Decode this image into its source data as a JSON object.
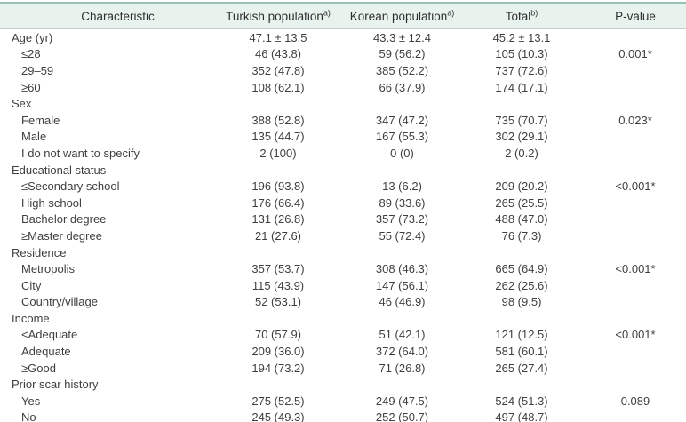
{
  "table": {
    "columns": [
      {
        "label": "Characteristic",
        "sup": ""
      },
      {
        "label": "Turkish population",
        "sup": "a)"
      },
      {
        "label": "Korean population",
        "sup": "a)"
      },
      {
        "label": "Total",
        "sup": "b)"
      },
      {
        "label": "P-value",
        "sup": ""
      }
    ],
    "rows": [
      {
        "label": "Age (yr)",
        "indent": 0,
        "turkish": "47.1 ± 13.5",
        "korean": "43.3 ± 12.4",
        "total": "45.2 ± 13.1",
        "p": ""
      },
      {
        "label": "≤28",
        "indent": 1,
        "turkish": "46 (43.8)",
        "korean": "59 (56.2)",
        "total": "105 (10.3)",
        "p": "0.001*"
      },
      {
        "label": "29–59",
        "indent": 1,
        "turkish": "352 (47.8)",
        "korean": "385 (52.2)",
        "total": "737 (72.6)",
        "p": ""
      },
      {
        "label": "≥60",
        "indent": 1,
        "turkish": "108 (62.1)",
        "korean": "66 (37.9)",
        "total": "174 (17.1)",
        "p": ""
      },
      {
        "label": "Sex",
        "indent": 0,
        "turkish": "",
        "korean": "",
        "total": "",
        "p": ""
      },
      {
        "label": "Female",
        "indent": 1,
        "turkish": "388 (52.8)",
        "korean": "347 (47.2)",
        "total": "735 (70.7)",
        "p": "0.023*"
      },
      {
        "label": "Male",
        "indent": 1,
        "turkish": "135 (44.7)",
        "korean": "167 (55.3)",
        "total": "302 (29.1)",
        "p": ""
      },
      {
        "label": "I do not want to specify",
        "indent": 1,
        "turkish": "2 (100)",
        "korean": "0 (0)",
        "total": "2 (0.2)",
        "p": ""
      },
      {
        "label": "Educational status",
        "indent": 0,
        "turkish": "",
        "korean": "",
        "total": "",
        "p": ""
      },
      {
        "label": "≤Secondary school",
        "indent": 1,
        "turkish": "196 (93.8)",
        "korean": "13 (6.2)",
        "total": "209 (20.2)",
        "p": "<0.001*"
      },
      {
        "label": "High school",
        "indent": 1,
        "turkish": "176 (66.4)",
        "korean": "89 (33.6)",
        "total": "265 (25.5)",
        "p": ""
      },
      {
        "label": "Bachelor degree",
        "indent": 1,
        "turkish": "131 (26.8)",
        "korean": "357 (73.2)",
        "total": "488 (47.0)",
        "p": ""
      },
      {
        "label": "≥Master degree",
        "indent": 1,
        "turkish": "21 (27.6)",
        "korean": "55 (72.4)",
        "total": "76 (7.3)",
        "p": ""
      },
      {
        "label": "Residence",
        "indent": 0,
        "turkish": "",
        "korean": "",
        "total": "",
        "p": ""
      },
      {
        "label": "Metropolis",
        "indent": 1,
        "turkish": "357 (53.7)",
        "korean": "308 (46.3)",
        "total": "665 (64.9)",
        "p": "<0.001*"
      },
      {
        "label": "City",
        "indent": 1,
        "turkish": "115 (43.9)",
        "korean": "147 (56.1)",
        "total": "262 (25.6)",
        "p": ""
      },
      {
        "label": "Country/village",
        "indent": 1,
        "turkish": "52 (53.1)",
        "korean": "46 (46.9)",
        "total": "98 (9.5)",
        "p": ""
      },
      {
        "label": "Income",
        "indent": 0,
        "turkish": "",
        "korean": "",
        "total": "",
        "p": ""
      },
      {
        "label": "<Adequate",
        "indent": 1,
        "turkish": "70 (57.9)",
        "korean": "51 (42.1)",
        "total": "121 (12.5)",
        "p": "<0.001*"
      },
      {
        "label": "Adequate",
        "indent": 1,
        "turkish": "209 (36.0)",
        "korean": "372 (64.0)",
        "total": "581 (60.1)",
        "p": ""
      },
      {
        "label": "≥Good",
        "indent": 1,
        "turkish": "194 (73.2)",
        "korean": "71 (26.8)",
        "total": "265 (27.4)",
        "p": ""
      },
      {
        "label": "Prior scar history",
        "indent": 0,
        "turkish": "",
        "korean": "",
        "total": "",
        "p": ""
      },
      {
        "label": "Yes",
        "indent": 1,
        "turkish": "275 (52.5)",
        "korean": "249 (47.5)",
        "total": "524 (51.3)",
        "p": "0.089"
      },
      {
        "label": "No",
        "indent": 1,
        "turkish": "245 (49.3)",
        "korean": "252 (50.7)",
        "total": "497 (48.7)",
        "p": ""
      }
    ],
    "colors": {
      "top_rule": "#96c5b5",
      "bottom_rule": "#b2d9c9",
      "header_bg": "#e8f3ee",
      "header_underline": "#c6cdc9",
      "text": "#3f3f3f"
    }
  }
}
